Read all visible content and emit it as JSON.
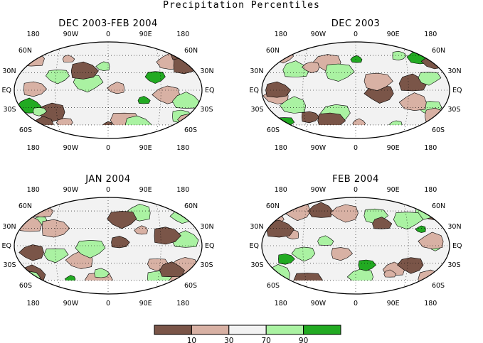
{
  "title": "Precipitation Percentiles",
  "panels": [
    {
      "title": "DEC 2003-FEB 2004"
    },
    {
      "title": "DEC 2003"
    },
    {
      "title": "JAN 2004"
    },
    {
      "title": "FEB 2004"
    }
  ],
  "lon_labels": [
    "180",
    "90W",
    "0",
    "90E",
    "180"
  ],
  "lat_labels": [
    "60N",
    "30N",
    "EQ",
    "30S",
    "60S"
  ],
  "legend": {
    "colors": [
      "#7a5548",
      "#d8b1a4",
      "#f2f2f2",
      "#aaf2a2",
      "#22aa22"
    ],
    "thresholds": [
      "10",
      "30",
      "70",
      "90"
    ]
  },
  "colors": {
    "below10": "#7a5548",
    "below30": "#d8b1a4",
    "normal": "#f2f2f2",
    "above70": "#aaf2a2",
    "above90": "#22aa22"
  }
}
